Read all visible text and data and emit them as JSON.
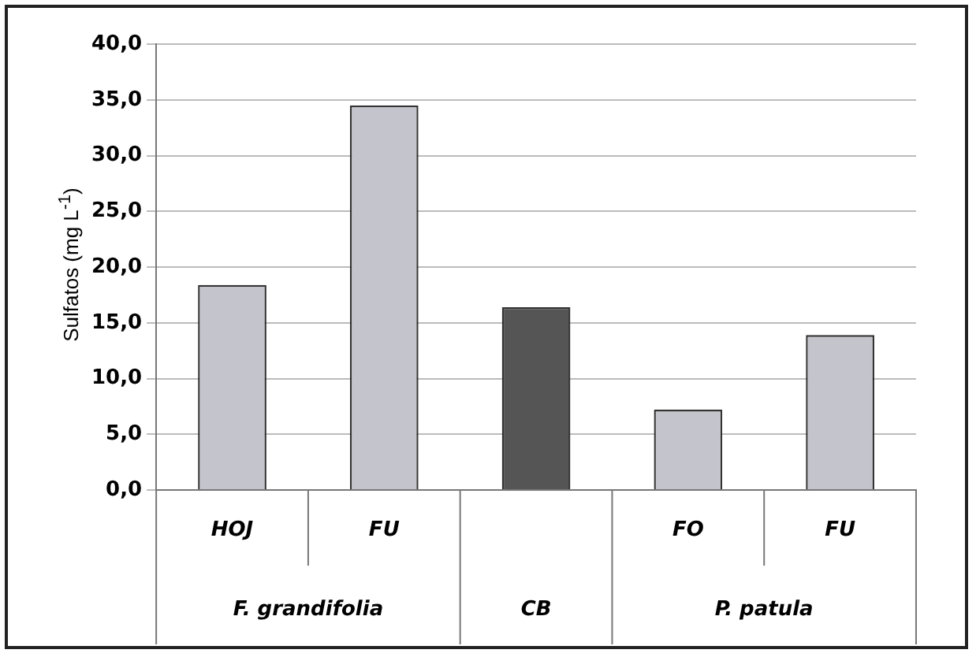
{
  "chart_data": {
    "type": "bar",
    "ylabel": "Sulfatos (mg L$^{-1}$)",
    "categories": [
      "HOJ",
      "FU",
      null,
      "FO",
      "FU"
    ],
    "values": [
      18.4,
      34.5,
      16.4,
      7.2,
      13.9
    ],
    "colors": [
      "#c4c4cc",
      "#c4c4cc",
      "#555555",
      "#c4c4cc",
      "#c4c4cc"
    ],
    "ylim": [
      0,
      40
    ],
    "yticks": [
      {
        "value": 0,
        "label": "0,0"
      },
      {
        "value": 5,
        "label": "5,0"
      },
      {
        "value": 10,
        "label": "10,0"
      },
      {
        "value": 15,
        "label": "15,0"
      },
      {
        "value": 20,
        "label": "20,0"
      },
      {
        "value": 25,
        "label": "25,0"
      },
      {
        "value": 30,
        "label": "30,0"
      },
      {
        "value": 35,
        "label": "35,0"
      },
      {
        "value": 40,
        "label": "40,0"
      }
    ],
    "annotations": [
      "F. grandifolia",
      "CB",
      "P. patula"
    ],
    "grid": "y",
    "legend": false
  }
}
